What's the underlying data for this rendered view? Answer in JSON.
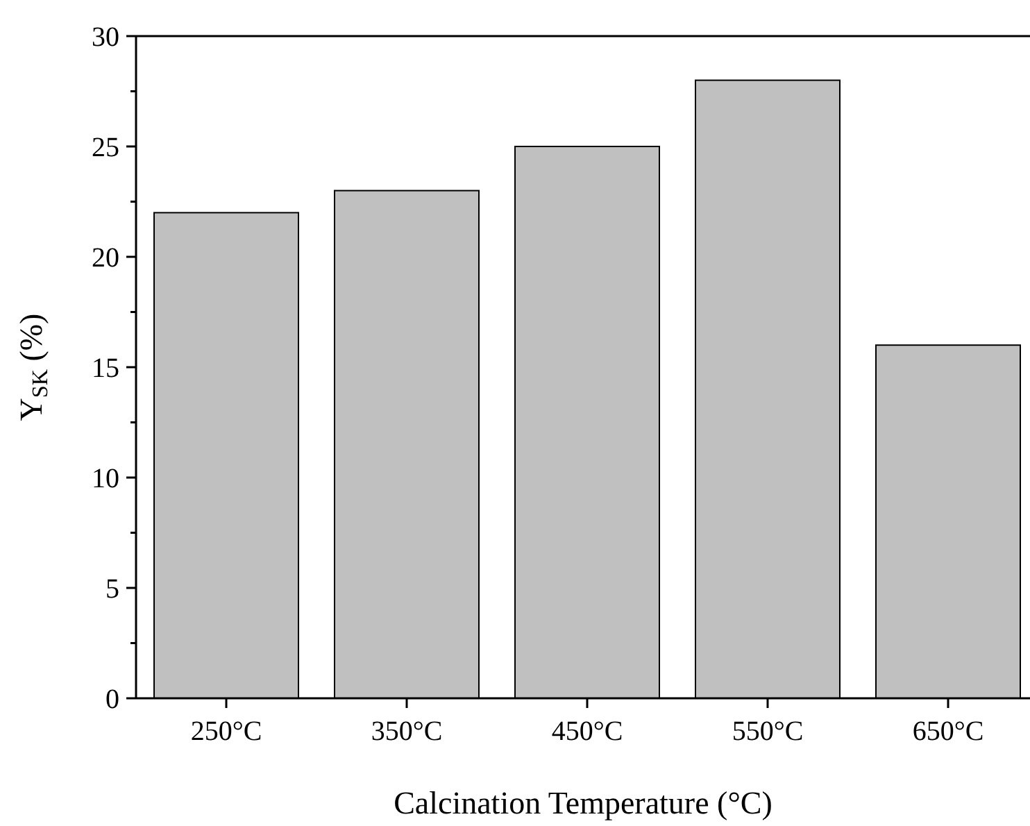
{
  "chart_data": {
    "type": "bar",
    "xlabel": "Calcination Temperature (°C)",
    "ylabel": "Y$_{SK}$ (%)",
    "categories": [
      "250°C",
      "350°C",
      "450°C",
      "550°C",
      "650°C"
    ],
    "values": [
      22,
      23,
      25,
      28,
      16
    ],
    "color": "#c0c0c0",
    "ylim": [
      0,
      30
    ],
    "yticks": [
      0,
      {
        "value": 2.5,
        "label": null
      },
      5,
      {
        "value": 7.5,
        "label": null
      },
      10,
      {
        "value": 12.5,
        "label": null
      },
      15,
      {
        "value": 17.5,
        "label": null
      },
      20,
      {
        "value": 22.5,
        "label": null
      },
      25,
      {
        "value": 27.5,
        "label": null
      },
      30
    ],
    "grid": false
  }
}
